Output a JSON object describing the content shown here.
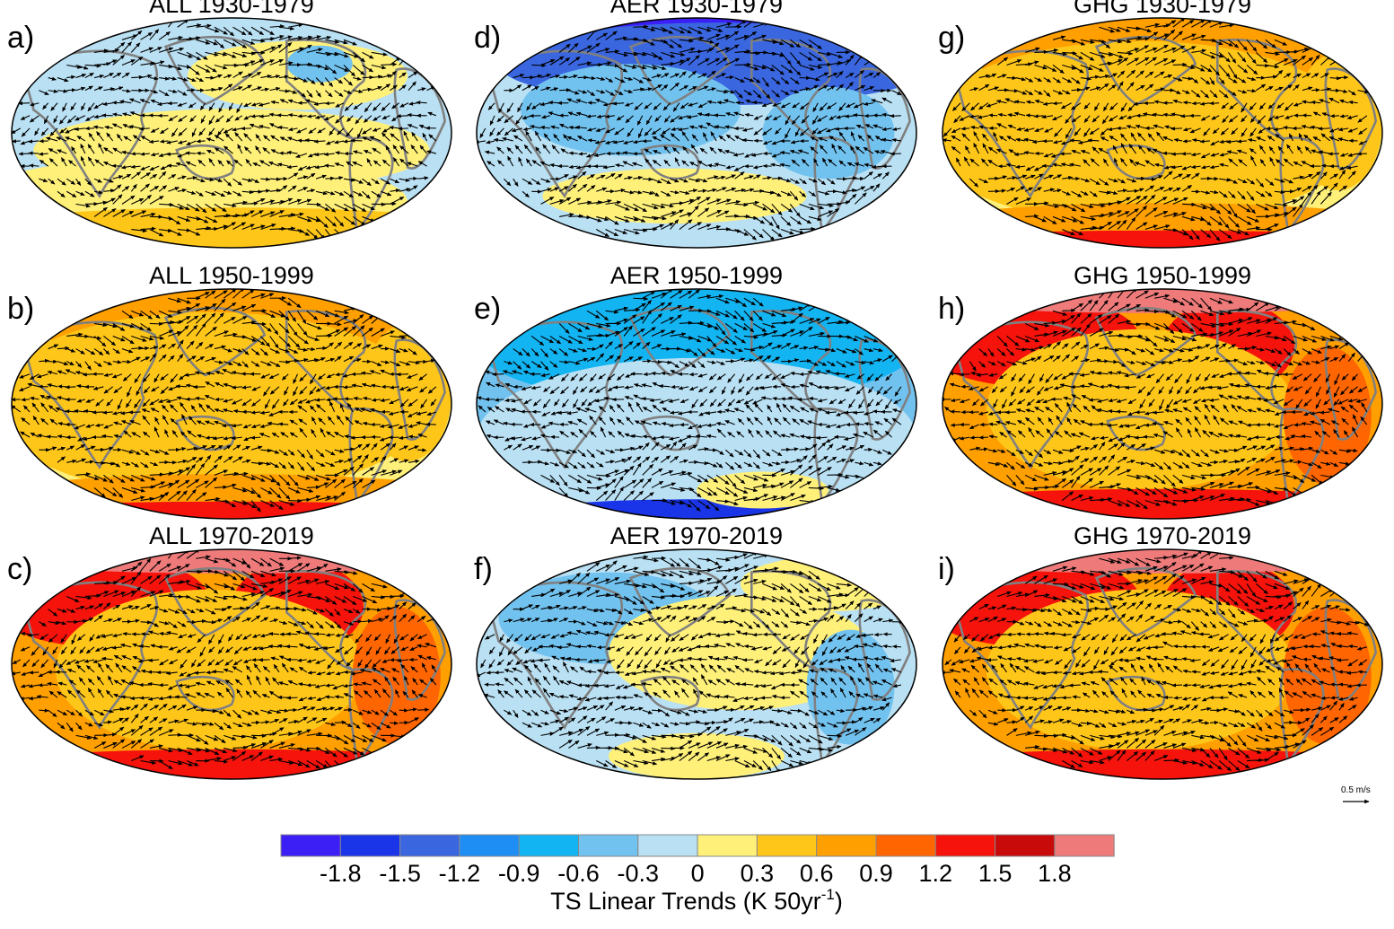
{
  "figure": {
    "panels": [
      {
        "letter": "a)",
        "title": "ALL 1930-1979",
        "pattern": "cool_mix"
      },
      {
        "letter": "d)",
        "title": "AER 1930-1979",
        "pattern": "aer_cool"
      },
      {
        "letter": "g)",
        "title": "GHG 1930-1979",
        "pattern": "warm_mild"
      },
      {
        "letter": "b)",
        "title": "ALL 1950-1999",
        "pattern": "warm_mild"
      },
      {
        "letter": "e)",
        "title": "AER 1950-1999",
        "pattern": "aer_cold"
      },
      {
        "letter": "h)",
        "title": "GHG 1950-1999",
        "pattern": "warm_strong"
      },
      {
        "letter": "c)",
        "title": "ALL 1970-2019",
        "pattern": "warm_strong"
      },
      {
        "letter": "f)",
        "title": "AER 1970-2019",
        "pattern": "aer_mix"
      },
      {
        "letter": "i)",
        "title": "GHG 1970-2019",
        "pattern": "warm_strong"
      }
    ],
    "reference_vector": {
      "label": "0.5 m/s"
    },
    "colorbar": {
      "title_prefix": "TS Linear Trends (K 50yr",
      "title_exponent": "-1",
      "title_suffix": ")",
      "tick_labels": [
        "-1.8",
        "-1.5",
        "-1.2",
        "-0.9",
        "-0.6",
        "-0.3",
        "0",
        "0.3",
        "0.6",
        "0.9",
        "1.2",
        "1.5",
        "1.8"
      ],
      "colors": [
        "#3b1ff5",
        "#1a35e8",
        "#3a66e0",
        "#1e8ef5",
        "#13b4f2",
        "#72c2ef",
        "#b9e0f3",
        "#fff07a",
        "#ffc61a",
        "#ff9f00",
        "#ff6500",
        "#f5130c",
        "#c80a0a",
        "#ee7a7a"
      ]
    }
  }
}
